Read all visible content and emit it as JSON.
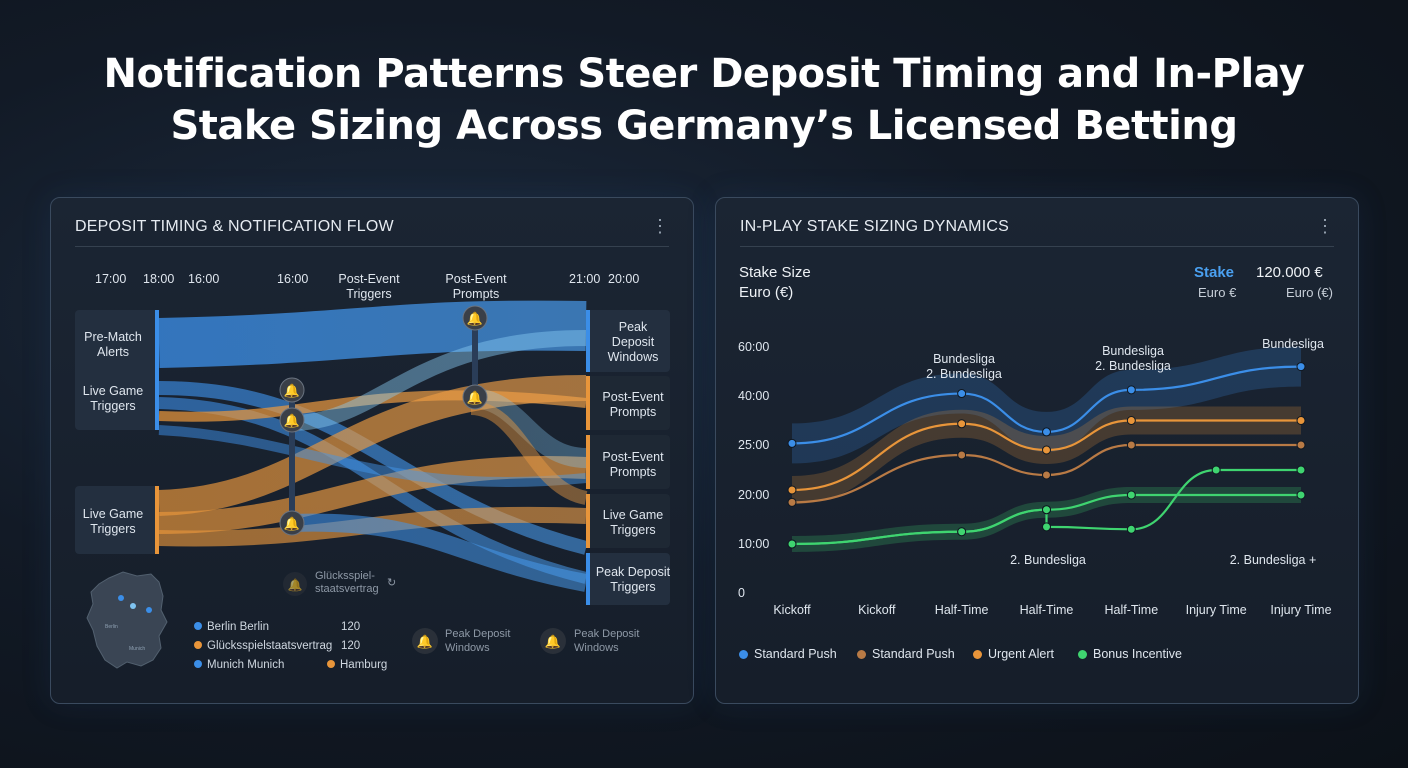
{
  "title_line1": "Notification Patterns Steer Deposit Timing and In-Play",
  "title_line2": "Stake Sizing Across Germany’s Licensed Betting",
  "left_panel": {
    "title": "DEPOSIT TIMING & NOTIFICATION FLOW",
    "menu_icon": "vertical-ellipsis-icon",
    "time_labels": [
      "17:00",
      "18:00",
      "16:00",
      "16:00",
      "21:00",
      "20:00"
    ],
    "column_labels": [
      "Post-Event Triggers",
      "Post-Event Prompts"
    ],
    "sources": [
      "Pre-Match Alerts",
      "Live Game Triggers",
      "Live Game Triggers"
    ],
    "targets": [
      "Peak Deposit Windows",
      "Post-Event Prompts",
      "Post-Event Prompts",
      "Live Game Triggers",
      "Peak Deposit Triggers"
    ],
    "faded_label": "Glücksspielstaatsvertrag",
    "legend": [
      {
        "label": "Berlin Berlin",
        "value": "120",
        "color": "#3b8ee8"
      },
      {
        "label": "Glücksspielstaatsvertrag",
        "value": "120",
        "color": "#e8953a"
      },
      {
        "label": "Munich Munich",
        "value": "",
        "color": "#3b8ee8"
      },
      {
        "label": "Hamburg",
        "value": "",
        "color": "#e8953a"
      }
    ],
    "bell_labels": [
      "Peak Deposit Windows",
      "Peak Deposit Windows"
    ],
    "colors": {
      "blue": "#3b8ee8",
      "orange": "#e8953a",
      "light_blue": "#7fc3f0"
    }
  },
  "right_panel": {
    "title": "IN-PLAY STAKE SIZING DYNAMICS",
    "menu_icon": "vertical-ellipsis-icon",
    "y_title_line1": "Stake Size",
    "y_title_line2": "Euro (€)",
    "stake_label": "Stake",
    "stake_unit": "Euro €",
    "stake_value": "120.000 €",
    "stake_value_unit": "Euro (€)",
    "annotations": {
      "a1_line1": "Bundesliga",
      "a1_line2": "2. Bundesliga",
      "a2_line1": "Bundesliga",
      "a2_line2": "2. Bundesliga",
      "a3": "Bundesliga",
      "b1": "2. Bundesliga",
      "b2": "2. Bundesliga +"
    }
  },
  "chart_data": {
    "type": "line",
    "x": [
      "Kickoff",
      "Kickoff",
      "Half-Time",
      "Half-Time",
      "Half-Time",
      "Injury Time",
      "Injury Time"
    ],
    "ytick_labels": [
      "0",
      "10:00",
      "20:00",
      "25:00",
      "40:00",
      "60:00"
    ],
    "series": [
      {
        "name": "Standard Push",
        "color": "#3b8ee8",
        "points": [
          [
            0,
            25.5
          ],
          [
            2,
            41
          ],
          [
            3,
            29
          ],
          [
            4,
            42.5
          ],
          [
            6,
            52
          ]
        ]
      },
      {
        "name": "Standard Push",
        "color": "#b87a45",
        "points": [
          [
            0,
            18.5
          ],
          [
            2,
            24
          ],
          [
            3,
            22
          ],
          [
            4,
            25
          ],
          [
            6,
            25
          ]
        ]
      },
      {
        "name": "Urgent Alert",
        "color": "#e8953a",
        "points": [
          [
            0,
            20.5
          ],
          [
            2,
            31.5
          ],
          [
            3,
            24.5
          ],
          [
            4,
            32.5
          ],
          [
            6,
            32.5
          ]
        ]
      },
      {
        "name": "Bonus Incentive",
        "color": "#3fd470",
        "points": [
          [
            0,
            10
          ],
          [
            2,
            12.5
          ],
          [
            3,
            17
          ],
          [
            3,
            13.5
          ],
          [
            4,
            13
          ],
          [
            5,
            22.5
          ],
          [
            6,
            22.5
          ]
        ]
      },
      {
        "name": "Bonus Incentive",
        "color": "#3fd470",
        "points": [
          [
            0,
            10
          ],
          [
            2,
            12.5
          ],
          [
            3,
            17
          ],
          [
            4,
            20
          ],
          [
            6,
            20
          ]
        ]
      }
    ]
  }
}
